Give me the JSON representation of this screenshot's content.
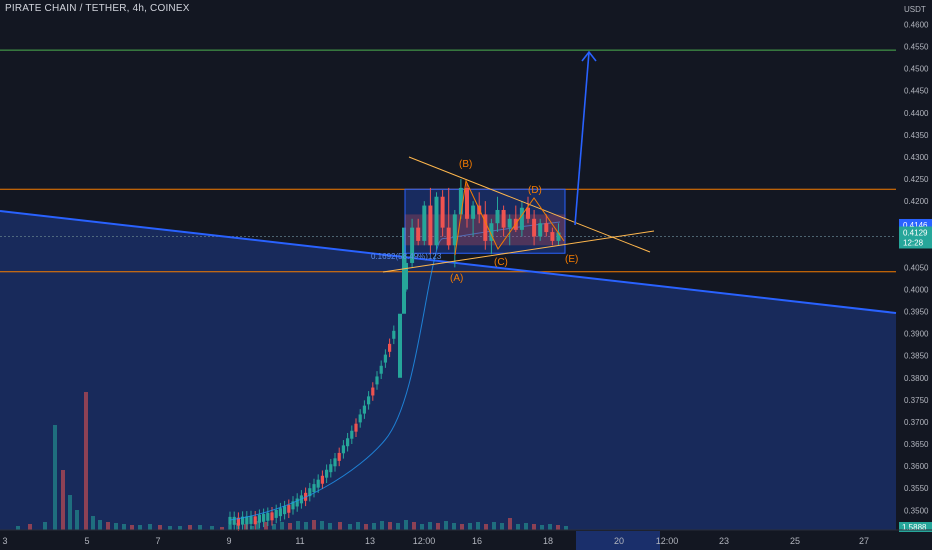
{
  "header": {
    "title": "PIRATE CHAIN / TETHER, 4h, COINEX"
  },
  "colors": {
    "background": "#131722",
    "up": "#26a69a",
    "down": "#ef5350",
    "drawing_blue": "#2962ff",
    "drawing_orange": "#f57c00",
    "green_line": "#4caf50",
    "trend_orange": "#ffb74d",
    "ma_line": "#2196f3"
  },
  "chart_data": {
    "type": "candlestick",
    "title": "PIRATE CHAIN / TETHER, 4h, COINEX",
    "y_axis": {
      "unit": "USDT",
      "side": "right",
      "range": [
        0.345,
        0.4615
      ],
      "ticks": [
        "0.4600",
        "0.4550",
        "0.4500",
        "0.4450",
        "0.4400",
        "0.4350",
        "0.4300",
        "0.4250",
        "0.4200",
        "0.4150",
        "0.4100",
        "0.4050",
        "0.4000",
        "0.3950",
        "0.3900",
        "0.3850",
        "0.3800",
        "0.3750",
        "0.3700",
        "0.3650",
        "0.3600",
        "0.3550",
        "0.3500"
      ]
    },
    "x_axis": {
      "ticks": [
        "3",
        "5",
        "7",
        "9",
        "11",
        "13",
        "12:00",
        "16",
        "18",
        "20",
        "12:00",
        "23",
        "25",
        "27"
      ],
      "highlighted": [
        "20"
      ]
    },
    "last_price": "0.4129",
    "countdown": "12:28",
    "marked_price": "0.4146",
    "axis_bottom_label": "1.5888",
    "horizontal_levels": [
      {
        "price": 0.4542,
        "color": "#4caf50"
      },
      {
        "price": 0.4227,
        "color": "#f57c00"
      },
      {
        "price": 0.404,
        "color": "#f57c00"
      },
      {
        "price": 0.412,
        "color": "#607d8b"
      }
    ],
    "channel_line": {
      "from": {
        "x": "3",
        "y": 0.4172
      },
      "to": {
        "x": "27",
        "y": 0.3948
      }
    },
    "rectangle": {
      "y_top": 0.4227,
      "y_bottom": 0.4082
    },
    "wave_labels": [
      "(A)",
      "(B)",
      "(C)",
      "(D)",
      "(E)"
    ],
    "target_arrow": {
      "from": 0.4152,
      "to": 0.4548
    },
    "fib_label": "0.1692(58.49%)123",
    "candles": [
      [
        0.4,
        0.407,
        0.3995,
        0.406
      ],
      [
        0.406,
        0.416,
        0.405,
        0.414
      ],
      [
        0.414,
        0.416,
        0.41,
        0.411
      ],
      [
        0.411,
        0.42,
        0.41,
        0.419
      ],
      [
        0.419,
        0.423,
        0.408,
        0.41
      ],
      [
        0.41,
        0.422,
        0.409,
        0.421
      ],
      [
        0.421,
        0.4225,
        0.412,
        0.414
      ],
      [
        0.414,
        0.423,
        0.409,
        0.41
      ],
      [
        0.41,
        0.418,
        0.405,
        0.417
      ],
      [
        0.417,
        0.425,
        0.416,
        0.423
      ],
      [
        0.423,
        0.424,
        0.414,
        0.416
      ],
      [
        0.416,
        0.42,
        0.412,
        0.419
      ],
      [
        0.419,
        0.422,
        0.415,
        0.417
      ],
      [
        0.417,
        0.42,
        0.409,
        0.411
      ],
      [
        0.411,
        0.416,
        0.408,
        0.415
      ],
      [
        0.415,
        0.421,
        0.413,
        0.418
      ],
      [
        0.418,
        0.419,
        0.412,
        0.414
      ],
      [
        0.414,
        0.417,
        0.41,
        0.416
      ],
      [
        0.416,
        0.419,
        0.413,
        0.4135
      ],
      [
        0.4135,
        0.42,
        0.412,
        0.4185
      ],
      [
        0.4185,
        0.421,
        0.415,
        0.416
      ],
      [
        0.416,
        0.418,
        0.41,
        0.412
      ],
      [
        0.412,
        0.416,
        0.411,
        0.415
      ],
      [
        0.415,
        0.417,
        0.412,
        0.413
      ],
      [
        0.413,
        0.414,
        0.41,
        0.411
      ],
      [
        0.411,
        0.415,
        0.41,
        0.4129
      ]
    ],
    "legend": "none",
    "grid": false
  }
}
